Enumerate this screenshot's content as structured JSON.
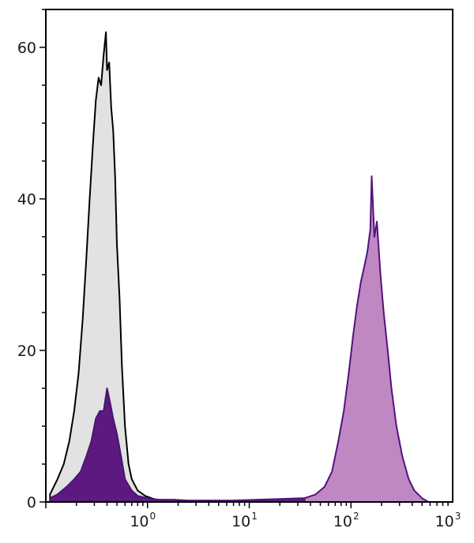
{
  "chart_data": {
    "type": "area",
    "title": "",
    "xlabel": "",
    "ylabel": "",
    "x_scale": "log",
    "xlim": [
      0.1,
      1000
    ],
    "ylim": [
      0,
      65
    ],
    "grid": false,
    "legend": "none",
    "x_ticks": [
      {
        "value": 1,
        "base": "10",
        "exp": "0"
      },
      {
        "value": 10,
        "base": "10",
        "exp": "1"
      },
      {
        "value": 100,
        "base": "10",
        "exp": "2"
      },
      {
        "value": 1000,
        "base": "10",
        "exp": "3"
      }
    ],
    "y_ticks": [
      {
        "value": 0,
        "label": "0"
      },
      {
        "value": 20,
        "label": "20"
      },
      {
        "value": 40,
        "label": "40"
      },
      {
        "value": 60,
        "label": "60"
      }
    ],
    "series": [
      {
        "fill": "#e2e2e2",
        "stroke": "#000000",
        "x": [
          0.11,
          0.13,
          0.15,
          0.17,
          0.19,
          0.21,
          0.23,
          0.25,
          0.27,
          0.29,
          0.31,
          0.33,
          0.35,
          0.37,
          0.39,
          0.4,
          0.42,
          0.44,
          0.46,
          0.48,
          0.5,
          0.53,
          0.56,
          0.6,
          0.65,
          0.7,
          0.8,
          0.95,
          1.2,
          1.6
        ],
        "y": [
          1,
          3,
          5,
          8,
          12,
          17,
          24,
          32,
          40,
          47,
          53,
          56,
          55,
          59,
          62,
          57,
          58,
          52,
          49,
          43,
          34,
          27,
          18,
          10,
          5,
          3,
          1.5,
          0.8,
          0.3,
          0
        ]
      },
      {
        "fill": "#5c1a80",
        "stroke": "#4a1570",
        "x": [
          0.11,
          0.13,
          0.16,
          0.19,
          0.22,
          0.25,
          0.28,
          0.31,
          0.34,
          0.37,
          0.4,
          0.43,
          0.46,
          0.5,
          0.55,
          0.6,
          0.7,
          0.8,
          1.0,
          1.3,
          1.8,
          2.5,
          4,
          7,
          12,
          20,
          35
        ],
        "y": [
          0.5,
          1,
          2,
          3,
          4,
          6,
          8,
          11,
          12,
          12,
          15,
          13,
          11,
          9,
          6,
          3,
          1.5,
          0.8,
          0.5,
          0.3,
          0.3,
          0.2,
          0.2,
          0.2,
          0.3,
          0.4,
          0.5
        ]
      },
      {
        "fill": "#c088c2",
        "stroke": "#54127e",
        "x": [
          35,
          45,
          55,
          65,
          75,
          85,
          95,
          105,
          115,
          125,
          135,
          145,
          155,
          160,
          170,
          180,
          195,
          210,
          230,
          250,
          280,
          320,
          370,
          420,
          500,
          580
        ],
        "y": [
          0.5,
          1,
          2,
          4,
          8,
          12,
          17,
          22,
          26,
          29,
          31,
          33,
          36,
          43,
          35,
          37,
          30,
          25,
          20,
          15,
          10,
          6,
          3,
          1.5,
          0.5,
          0
        ]
      }
    ]
  }
}
